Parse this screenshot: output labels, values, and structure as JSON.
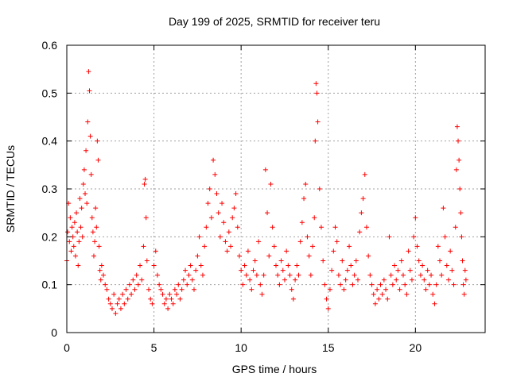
{
  "chart_data": {
    "type": "scatter",
    "title": "Day 199 of 2025, SRMTID for receiver teru",
    "xlabel": "GPS time / hours",
    "ylabel": "SRMTID / TECUs",
    "xlim": [
      0,
      24.0
    ],
    "ylim": [
      0,
      0.6
    ],
    "xticks": [
      0,
      5,
      10,
      15,
      20
    ],
    "yticks": [
      0,
      0.1,
      0.2,
      0.3,
      0.4,
      0.5,
      0.6
    ],
    "xtick_labels": [
      "0",
      "5",
      "10",
      "15",
      "20"
    ],
    "ytick_labels": [
      "0",
      "0.1",
      "0.2",
      "0.3",
      "0.4",
      "0.5",
      "0.6"
    ],
    "grid": true,
    "marker": "+",
    "series": [
      {
        "name": "SRMTID",
        "color": "#ff0000",
        "points": [
          [
            0.0,
            0.15
          ],
          [
            0.05,
            0.21
          ],
          [
            0.1,
            0.27
          ],
          [
            0.15,
            0.19
          ],
          [
            0.2,
            0.24
          ],
          [
            0.25,
            0.17
          ],
          [
            0.3,
            0.22
          ],
          [
            0.35,
            0.2
          ],
          [
            0.4,
            0.18
          ],
          [
            0.45,
            0.23
          ],
          [
            0.5,
            0.16
          ],
          [
            0.55,
            0.25
          ],
          [
            0.6,
            0.21
          ],
          [
            0.65,
            0.14
          ],
          [
            0.7,
            0.19
          ],
          [
            0.75,
            0.28
          ],
          [
            0.8,
            0.22
          ],
          [
            0.85,
            0.26
          ],
          [
            0.9,
            0.2
          ],
          [
            0.95,
            0.31
          ],
          [
            1.0,
            0.34
          ],
          [
            1.05,
            0.29
          ],
          [
            1.1,
            0.38
          ],
          [
            1.15,
            0.27
          ],
          [
            1.2,
            0.44
          ],
          [
            1.25,
            0.545
          ],
          [
            1.3,
            0.505
          ],
          [
            1.35,
            0.41
          ],
          [
            1.4,
            0.33
          ],
          [
            1.45,
            0.24
          ],
          [
            1.5,
            0.21
          ],
          [
            1.55,
            0.16
          ],
          [
            1.6,
            0.19
          ],
          [
            1.65,
            0.26
          ],
          [
            1.7,
            0.22
          ],
          [
            1.75,
            0.4
          ],
          [
            1.8,
            0.36
          ],
          [
            1.85,
            0.18
          ],
          [
            1.9,
            0.13
          ],
          [
            1.95,
            0.11
          ],
          [
            2.0,
            0.14
          ],
          [
            2.1,
            0.12
          ],
          [
            2.2,
            0.1
          ],
          [
            2.3,
            0.09
          ],
          [
            2.4,
            0.07
          ],
          [
            2.5,
            0.06
          ],
          [
            2.6,
            0.05
          ],
          [
            2.7,
            0.08
          ],
          [
            2.8,
            0.04
          ],
          [
            2.9,
            0.06
          ],
          [
            3.0,
            0.07
          ],
          [
            3.1,
            0.05
          ],
          [
            3.2,
            0.08
          ],
          [
            3.3,
            0.06
          ],
          [
            3.4,
            0.09
          ],
          [
            3.5,
            0.07
          ],
          [
            3.6,
            0.1
          ],
          [
            3.7,
            0.08
          ],
          [
            3.8,
            0.11
          ],
          [
            3.9,
            0.09
          ],
          [
            4.0,
            0.12
          ],
          [
            4.1,
            0.1
          ],
          [
            4.2,
            0.14
          ],
          [
            4.3,
            0.11
          ],
          [
            4.4,
            0.18
          ],
          [
            4.45,
            0.31
          ],
          [
            4.5,
            0.32
          ],
          [
            4.55,
            0.24
          ],
          [
            4.6,
            0.15
          ],
          [
            4.7,
            0.09
          ],
          [
            4.8,
            0.07
          ],
          [
            4.9,
            0.06
          ],
          [
            5.0,
            0.14
          ],
          [
            5.1,
            0.17
          ],
          [
            5.2,
            0.12
          ],
          [
            5.3,
            0.1
          ],
          [
            5.4,
            0.09
          ],
          [
            5.5,
            0.08
          ],
          [
            5.6,
            0.06
          ],
          [
            5.7,
            0.07
          ],
          [
            5.8,
            0.05
          ],
          [
            5.9,
            0.08
          ],
          [
            6.0,
            0.07
          ],
          [
            6.1,
            0.06
          ],
          [
            6.2,
            0.09
          ],
          [
            6.3,
            0.08
          ],
          [
            6.4,
            0.1
          ],
          [
            6.5,
            0.07
          ],
          [
            6.6,
            0.09
          ],
          [
            6.7,
            0.11
          ],
          [
            6.8,
            0.13
          ],
          [
            6.9,
            0.1
          ],
          [
            7.0,
            0.12
          ],
          [
            7.1,
            0.14
          ],
          [
            7.2,
            0.11
          ],
          [
            7.3,
            0.09
          ],
          [
            7.4,
            0.13
          ],
          [
            7.5,
            0.16
          ],
          [
            7.6,
            0.2
          ],
          [
            7.7,
            0.14
          ],
          [
            7.8,
            0.12
          ],
          [
            7.9,
            0.18
          ],
          [
            8.0,
            0.22
          ],
          [
            8.1,
            0.27
          ],
          [
            8.2,
            0.3
          ],
          [
            8.3,
            0.24
          ],
          [
            8.4,
            0.36
          ],
          [
            8.5,
            0.33
          ],
          [
            8.6,
            0.29
          ],
          [
            8.7,
            0.25
          ],
          [
            8.8,
            0.2
          ],
          [
            8.9,
            0.27
          ],
          [
            9.0,
            0.23
          ],
          [
            9.1,
            0.19
          ],
          [
            9.2,
            0.17
          ],
          [
            9.3,
            0.21
          ],
          [
            9.4,
            0.18
          ],
          [
            9.5,
            0.24
          ],
          [
            9.6,
            0.26
          ],
          [
            9.7,
            0.29
          ],
          [
            9.8,
            0.22
          ],
          [
            9.9,
            0.16
          ],
          [
            10.0,
            0.13
          ],
          [
            10.1,
            0.1
          ],
          [
            10.2,
            0.14
          ],
          [
            10.3,
            0.12
          ],
          [
            10.4,
            0.17
          ],
          [
            10.5,
            0.11
          ],
          [
            10.6,
            0.09
          ],
          [
            10.7,
            0.13
          ],
          [
            10.8,
            0.15
          ],
          [
            10.9,
            0.12
          ],
          [
            11.0,
            0.19
          ],
          [
            11.1,
            0.1
          ],
          [
            11.2,
            0.08
          ],
          [
            11.3,
            0.12
          ],
          [
            11.4,
            0.34
          ],
          [
            11.5,
            0.25
          ],
          [
            11.6,
            0.16
          ],
          [
            11.7,
            0.31
          ],
          [
            11.8,
            0.22
          ],
          [
            11.9,
            0.18
          ],
          [
            12.0,
            0.14
          ],
          [
            12.1,
            0.12
          ],
          [
            12.2,
            0.1
          ],
          [
            12.3,
            0.15
          ],
          [
            12.4,
            0.13
          ],
          [
            12.5,
            0.11
          ],
          [
            12.6,
            0.17
          ],
          [
            12.7,
            0.14
          ],
          [
            12.8,
            0.12
          ],
          [
            12.9,
            0.09
          ],
          [
            13.0,
            0.07
          ],
          [
            13.1,
            0.11
          ],
          [
            13.2,
            0.14
          ],
          [
            13.3,
            0.12
          ],
          [
            13.4,
            0.19
          ],
          [
            13.5,
            0.23
          ],
          [
            13.6,
            0.28
          ],
          [
            13.7,
            0.31
          ],
          [
            13.8,
            0.2
          ],
          [
            13.9,
            0.16
          ],
          [
            14.0,
            0.12
          ],
          [
            14.1,
            0.18
          ],
          [
            14.2,
            0.24
          ],
          [
            14.25,
            0.4
          ],
          [
            14.3,
            0.52
          ],
          [
            14.35,
            0.5
          ],
          [
            14.4,
            0.44
          ],
          [
            14.5,
            0.3
          ],
          [
            14.6,
            0.22
          ],
          [
            14.7,
            0.15
          ],
          [
            14.8,
            0.1
          ],
          [
            14.9,
            0.07
          ],
          [
            15.0,
            0.05
          ],
          [
            15.1,
            0.09
          ],
          [
            15.2,
            0.13
          ],
          [
            15.3,
            0.17
          ],
          [
            15.4,
            0.22
          ],
          [
            15.5,
            0.19
          ],
          [
            15.6,
            0.12
          ],
          [
            15.7,
            0.1
          ],
          [
            15.8,
            0.15
          ],
          [
            15.9,
            0.09
          ],
          [
            16.0,
            0.11
          ],
          [
            16.1,
            0.13
          ],
          [
            16.2,
            0.18
          ],
          [
            16.3,
            0.14
          ],
          [
            16.4,
            0.1
          ],
          [
            16.5,
            0.12
          ],
          [
            16.6,
            0.15
          ],
          [
            16.7,
            0.11
          ],
          [
            16.8,
            0.21
          ],
          [
            16.9,
            0.25
          ],
          [
            17.0,
            0.28
          ],
          [
            17.1,
            0.33
          ],
          [
            17.2,
            0.22
          ],
          [
            17.3,
            0.16
          ],
          [
            17.4,
            0.12
          ],
          [
            17.5,
            0.1
          ],
          [
            17.6,
            0.08
          ],
          [
            17.7,
            0.06
          ],
          [
            17.8,
            0.09
          ],
          [
            17.9,
            0.07
          ],
          [
            18.0,
            0.1
          ],
          [
            18.1,
            0.08
          ],
          [
            18.2,
            0.11
          ],
          [
            18.3,
            0.09
          ],
          [
            18.4,
            0.07
          ],
          [
            18.5,
            0.2
          ],
          [
            18.6,
            0.12
          ],
          [
            18.7,
            0.1
          ],
          [
            18.8,
            0.14
          ],
          [
            18.9,
            0.11
          ],
          [
            19.0,
            0.13
          ],
          [
            19.1,
            0.09
          ],
          [
            19.2,
            0.15
          ],
          [
            19.3,
            0.12
          ],
          [
            19.4,
            0.1
          ],
          [
            19.5,
            0.08
          ],
          [
            19.6,
            0.17
          ],
          [
            19.7,
            0.13
          ],
          [
            19.8,
            0.11
          ],
          [
            19.9,
            0.2
          ],
          [
            20.0,
            0.24
          ],
          [
            20.1,
            0.18
          ],
          [
            20.2,
            0.15
          ],
          [
            20.3,
            0.12
          ],
          [
            20.4,
            0.14
          ],
          [
            20.5,
            0.11
          ],
          [
            20.6,
            0.09
          ],
          [
            20.7,
            0.13
          ],
          [
            20.8,
            0.1
          ],
          [
            20.9,
            0.12
          ],
          [
            21.0,
            0.08
          ],
          [
            21.1,
            0.06
          ],
          [
            21.2,
            0.1
          ],
          [
            21.3,
            0.18
          ],
          [
            21.4,
            0.15
          ],
          [
            21.5,
            0.12
          ],
          [
            21.6,
            0.26
          ],
          [
            21.7,
            0.2
          ],
          [
            21.8,
            0.14
          ],
          [
            21.9,
            0.11
          ],
          [
            22.0,
            0.17
          ],
          [
            22.1,
            0.13
          ],
          [
            22.2,
            0.1
          ],
          [
            22.3,
            0.22
          ],
          [
            22.35,
            0.34
          ],
          [
            22.4,
            0.43
          ],
          [
            22.45,
            0.4
          ],
          [
            22.5,
            0.36
          ],
          [
            22.55,
            0.3
          ],
          [
            22.6,
            0.25
          ],
          [
            22.65,
            0.2
          ],
          [
            22.7,
            0.15
          ],
          [
            22.75,
            0.1
          ],
          [
            22.8,
            0.08
          ],
          [
            22.85,
            0.13
          ],
          [
            22.9,
            0.11
          ]
        ]
      }
    ]
  }
}
